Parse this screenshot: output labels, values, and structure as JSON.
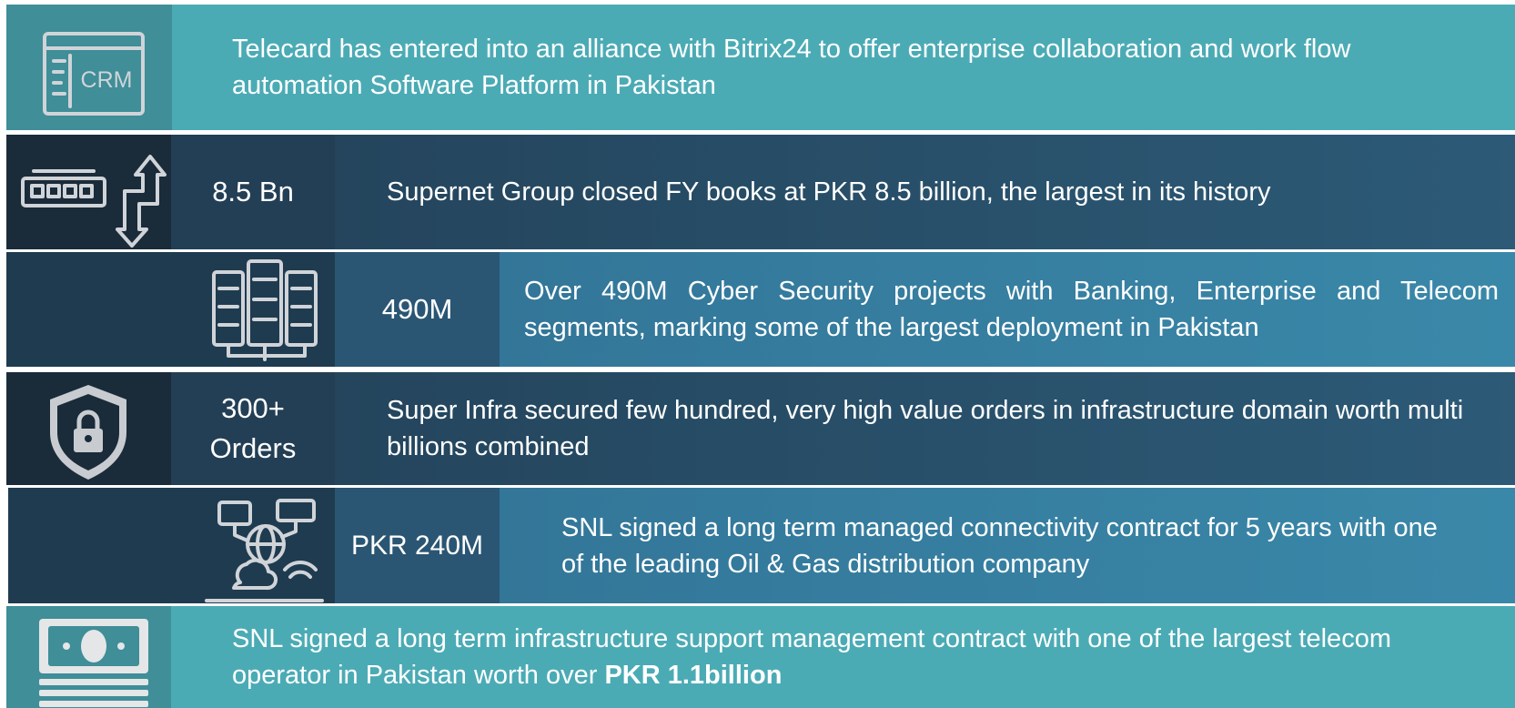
{
  "rows": [
    {
      "text": "Telecard has entered into an alliance with Bitrix24 to offer enterprise collaboration and  work flow automation Software Platform in Pakistan",
      "icon_label": "CRM"
    },
    {
      "figure": "8.5 Bn",
      "text": "Supernet Group closed FY books at PKR 8.5 billion, the largest in its history"
    },
    {
      "figure": "490M",
      "text": "Over 490M Cyber Security projects with Banking, Enterprise and Telecom segments, marking some of the largest deployment in Pakistan"
    },
    {
      "figure": "300+ Orders",
      "text": "Super Infra secured few hundred, very high value orders in infrastructure domain worth multi billions combined"
    },
    {
      "figure": "PKR 240M",
      "text": "SNL signed a long term managed connectivity contract for 5 years with one of the leading Oil & Gas distribution company"
    },
    {
      "text": "SNL signed a long term infrastructure support management contract with one of the largest telecom operator in Pakistan worth over",
      "highlight": "PKR 1.1billion"
    }
  ]
}
